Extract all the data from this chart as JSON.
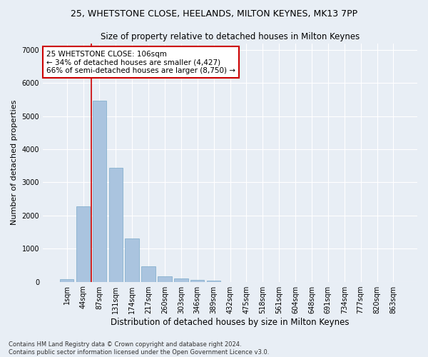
{
  "title": "25, WHETSTONE CLOSE, HEELANDS, MILTON KEYNES, MK13 7PP",
  "subtitle": "Size of property relative to detached houses in Milton Keynes",
  "xlabel": "Distribution of detached houses by size in Milton Keynes",
  "ylabel": "Number of detached properties",
  "footer_line1": "Contains HM Land Registry data © Crown copyright and database right 2024.",
  "footer_line2": "Contains public sector information licensed under the Open Government Licence v3.0.",
  "categories": [
    "1sqm",
    "44sqm",
    "87sqm",
    "131sqm",
    "174sqm",
    "217sqm",
    "260sqm",
    "303sqm",
    "346sqm",
    "389sqm",
    "432sqm",
    "475sqm",
    "518sqm",
    "561sqm",
    "604sqm",
    "648sqm",
    "691sqm",
    "734sqm",
    "777sqm",
    "820sqm",
    "863sqm"
  ],
  "bar_values": [
    75,
    2270,
    5470,
    3440,
    1310,
    470,
    155,
    90,
    60,
    35,
    0,
    0,
    0,
    0,
    0,
    0,
    0,
    0,
    0,
    0,
    0
  ],
  "bar_color": "#aac4df",
  "bar_edge_color": "#7aaac8",
  "background_color": "#e8eef5",
  "grid_color": "#ffffff",
  "annotation_text": "25 WHETSTONE CLOSE: 106sqm\n← 34% of detached houses are smaller (4,427)\n66% of semi-detached houses are larger (8,750) →",
  "annotation_box_color": "#ffffff",
  "annotation_box_edge": "#cc0000",
  "vline_x": 1.5,
  "vline_color": "#cc0000",
  "ylim": [
    0,
    7200
  ],
  "yticks": [
    0,
    1000,
    2000,
    3000,
    4000,
    5000,
    6000,
    7000
  ],
  "title_fontsize": 9,
  "subtitle_fontsize": 8.5,
  "xlabel_fontsize": 8.5,
  "ylabel_fontsize": 8,
  "tick_fontsize": 7,
  "annotation_fontsize": 7.5,
  "footer_fontsize": 6
}
